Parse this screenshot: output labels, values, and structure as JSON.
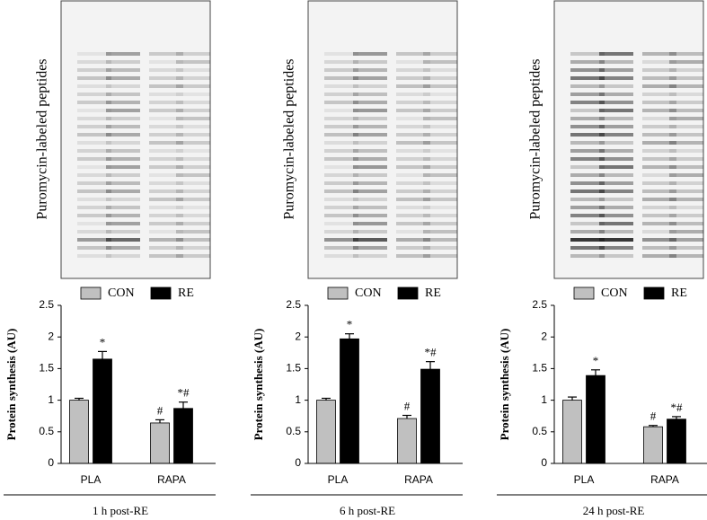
{
  "chart_data": [
    {
      "type": "bar",
      "blot_label": "Puromycin-labeled peptides",
      "ylabel": "Protein synthesis (AU)",
      "xlabel": "1 h post-RE",
      "categories": [
        "PLA",
        "RAPA"
      ],
      "series": [
        {
          "name": "CON",
          "color": "#c0c0c0",
          "values": [
            1.0,
            0.64
          ],
          "errors": [
            0.03,
            0.05
          ],
          "markers": [
            null,
            "#"
          ]
        },
        {
          "name": "RE",
          "color": "#000000",
          "values": [
            1.65,
            0.87
          ],
          "errors": [
            0.12,
            0.1
          ],
          "markers": [
            "*",
            "*#"
          ]
        }
      ],
      "ylim": [
        0,
        2.5
      ],
      "yticks": [
        0,
        0.5,
        1,
        1.5,
        2,
        2.5
      ]
    },
    {
      "type": "bar",
      "blot_label": "Puromycin-labeled peptides",
      "ylabel": "Protein synthesis (AU)",
      "xlabel": "6 h post-RE",
      "categories": [
        "PLA",
        "RAPA"
      ],
      "series": [
        {
          "name": "CON",
          "color": "#c0c0c0",
          "values": [
            1.0,
            0.71
          ],
          "errors": [
            0.03,
            0.05
          ],
          "markers": [
            null,
            "#"
          ]
        },
        {
          "name": "RE",
          "color": "#000000",
          "values": [
            1.97,
            1.49
          ],
          "errors": [
            0.08,
            0.12
          ],
          "markers": [
            "*",
            "*#"
          ]
        }
      ],
      "ylim": [
        0,
        2.5
      ],
      "yticks": [
        0,
        0.5,
        1,
        1.5,
        2,
        2.5
      ]
    },
    {
      "type": "bar",
      "blot_label": "Puromycin-labeled peptides",
      "ylabel": "Protein synthesis (AU)",
      "xlabel": "24 h post-RE",
      "categories": [
        "PLA",
        "RAPA"
      ],
      "series": [
        {
          "name": "CON",
          "color": "#c0c0c0",
          "values": [
            1.0,
            0.58
          ],
          "errors": [
            0.05,
            0.02
          ],
          "markers": [
            null,
            "#"
          ]
        },
        {
          "name": "RE",
          "color": "#000000",
          "values": [
            1.39,
            0.7
          ],
          "errors": [
            0.09,
            0.04
          ],
          "markers": [
            "*",
            "*#"
          ]
        }
      ],
      "ylim": [
        0,
        2.5
      ],
      "yticks": [
        0,
        0.5,
        1,
        1.5,
        2,
        2.5
      ]
    }
  ]
}
